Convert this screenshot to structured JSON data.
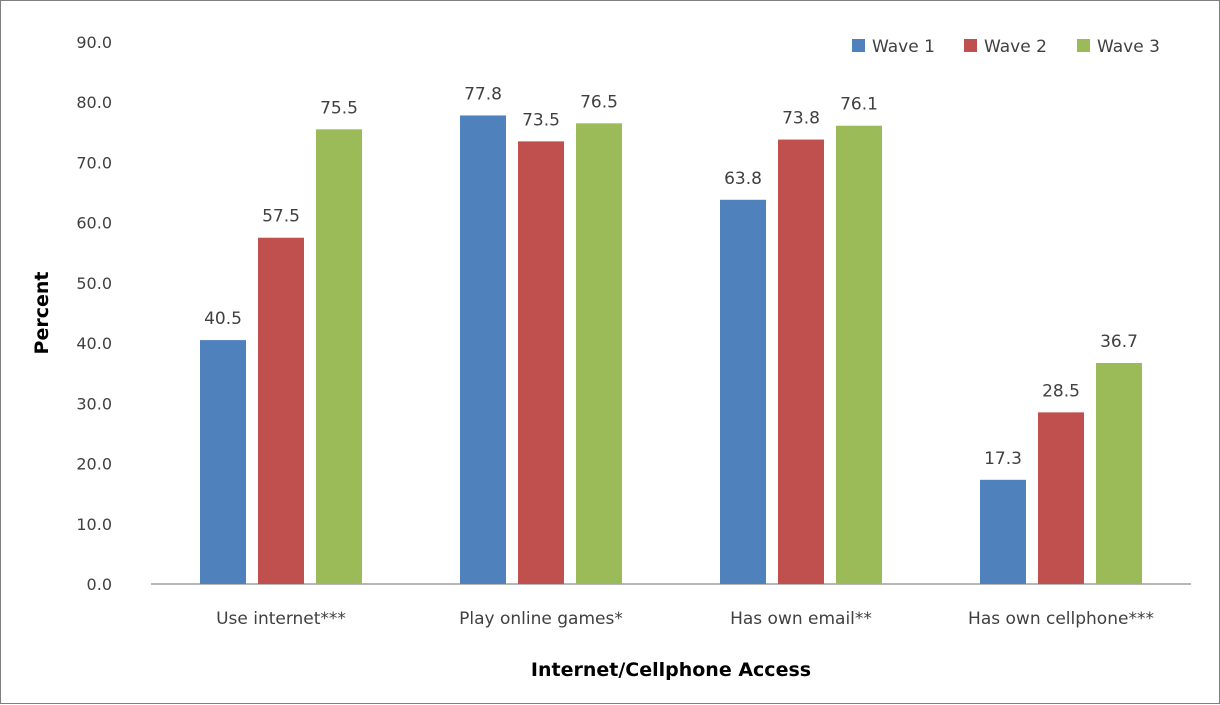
{
  "chart_data": {
    "type": "bar",
    "title": "",
    "xlabel": "Internet/Cellphone Access",
    "ylabel": "Percent",
    "ylim": [
      0,
      90
    ],
    "yticks": [
      "0.0",
      "10.0",
      "20.0",
      "30.0",
      "40.0",
      "50.0",
      "60.0",
      "70.0",
      "80.0",
      "90.0"
    ],
    "categories": [
      "Use internet***",
      "Play online games*",
      "Has own email**",
      "Has own cellphone***"
    ],
    "series": [
      {
        "name": "Wave 1",
        "color": "#4f81bd",
        "values": [
          40.5,
          77.8,
          63.8,
          17.3
        ]
      },
      {
        "name": "Wave 2",
        "color": "#c0504d",
        "values": [
          57.5,
          73.5,
          73.8,
          28.5
        ]
      },
      {
        "name": "Wave 3",
        "color": "#9bbb59",
        "values": [
          75.5,
          76.5,
          76.1,
          36.7
        ]
      }
    ],
    "legend_position": "top-right",
    "grid": false
  }
}
